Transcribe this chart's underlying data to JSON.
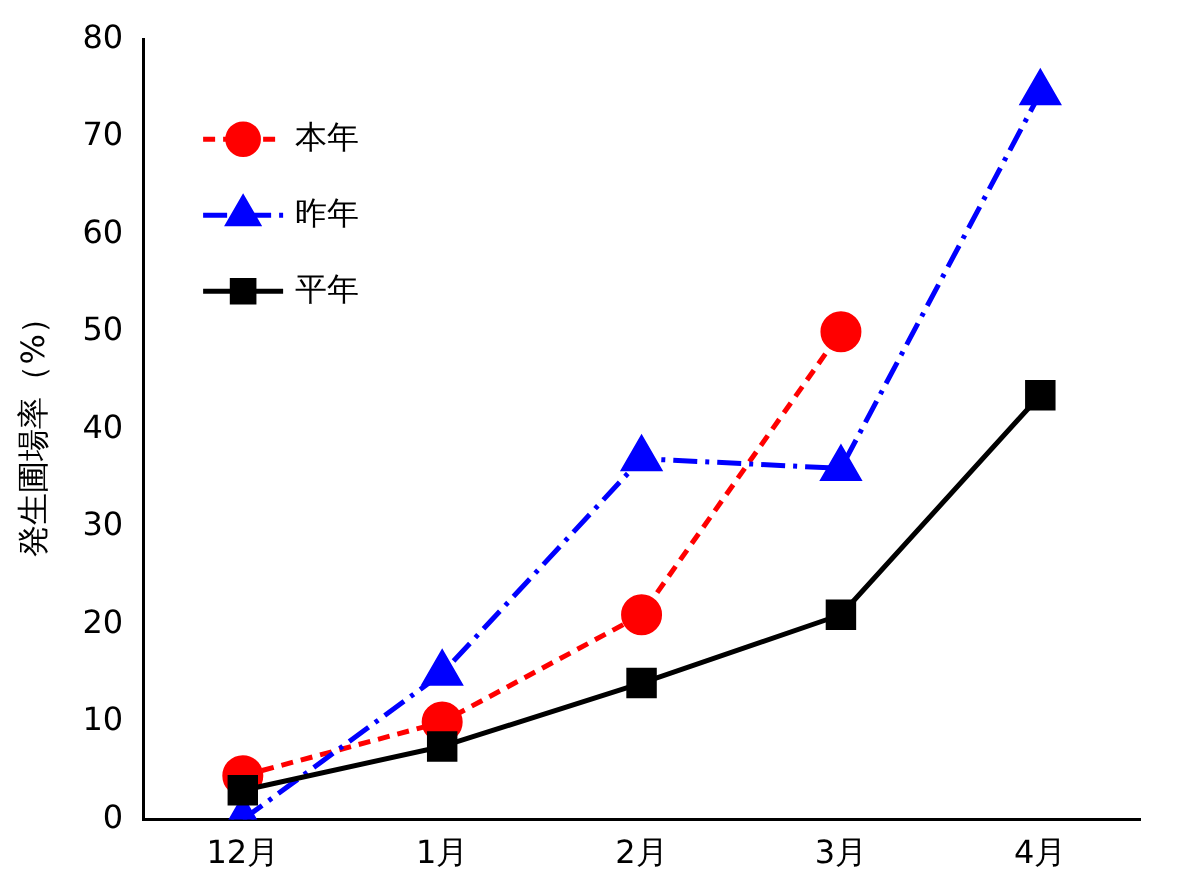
{
  "chart_data": {
    "type": "line",
    "ylabel": "発生圃場率（%）",
    "categories": [
      "12月",
      "1月",
      "2月",
      "3月",
      "4月"
    ],
    "series": [
      {
        "name": "本年",
        "color": "#ff0000",
        "values": [
          4.5,
          10,
          21,
          50,
          null
        ],
        "marker": "circle",
        "line_style": "dashed"
      },
      {
        "name": "昨年",
        "color": "#0000ff",
        "values": [
          0,
          15,
          37,
          36,
          74.5
        ],
        "marker": "triangle",
        "line_style": "dashdot"
      },
      {
        "name": "平年",
        "color": "#000000",
        "values": [
          3,
          7.5,
          14,
          21,
          43.5
        ],
        "marker": "square",
        "line_style": "solid"
      }
    ],
    "ylim": [
      0,
      80
    ],
    "yticks": [
      0,
      10,
      20,
      30,
      40,
      50,
      60,
      70,
      80
    ],
    "grid": false,
    "legend": "top left"
  }
}
